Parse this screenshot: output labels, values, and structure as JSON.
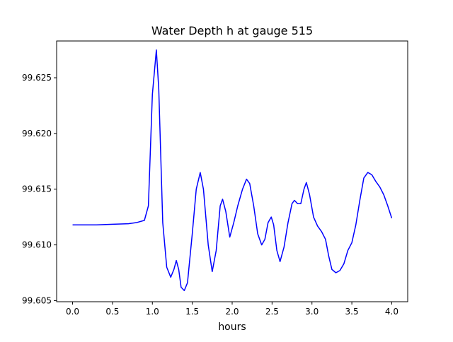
{
  "chart_data": {
    "type": "line",
    "title": "Water Depth h at gauge 515",
    "xlabel": "hours",
    "ylabel": "",
    "xlim": [
      -0.2,
      4.2
    ],
    "ylim": [
      99.6049,
      99.6283
    ],
    "xticks": [
      0.0,
      0.5,
      1.0,
      1.5,
      2.0,
      2.5,
      3.0,
      3.5,
      4.0
    ],
    "xtick_labels": [
      "0.0",
      "0.5",
      "1.0",
      "1.5",
      "2.0",
      "2.5",
      "3.0",
      "3.5",
      "4.0"
    ],
    "yticks": [
      99.605,
      99.61,
      99.615,
      99.62,
      99.625
    ],
    "ytick_labels": [
      "99.605",
      "99.610",
      "99.615",
      "99.620",
      "99.625"
    ],
    "grid": false,
    "series": [
      {
        "color": "#0000ff",
        "points": [
          [
            0.0,
            99.6118
          ],
          [
            0.3,
            99.6118
          ],
          [
            0.5,
            99.61185
          ],
          [
            0.7,
            99.6119
          ],
          [
            0.8,
            99.612
          ],
          [
            0.9,
            99.6122
          ],
          [
            0.95,
            99.6135
          ],
          [
            1.0,
            99.6235
          ],
          [
            1.05,
            99.6275
          ],
          [
            1.08,
            99.624
          ],
          [
            1.13,
            99.612
          ],
          [
            1.18,
            99.608
          ],
          [
            1.23,
            99.6071
          ],
          [
            1.27,
            99.6078
          ],
          [
            1.3,
            99.6086
          ],
          [
            1.33,
            99.6078
          ],
          [
            1.36,
            99.6062
          ],
          [
            1.4,
            99.6059
          ],
          [
            1.44,
            99.6066
          ],
          [
            1.5,
            99.611
          ],
          [
            1.55,
            99.615
          ],
          [
            1.6,
            99.6165
          ],
          [
            1.64,
            99.615
          ],
          [
            1.7,
            99.61
          ],
          [
            1.75,
            99.6076
          ],
          [
            1.8,
            99.6095
          ],
          [
            1.85,
            99.6135
          ],
          [
            1.88,
            99.6141
          ],
          [
            1.92,
            99.613
          ],
          [
            1.97,
            99.6107
          ],
          [
            2.02,
            99.612
          ],
          [
            2.07,
            99.6135
          ],
          [
            2.13,
            99.615
          ],
          [
            2.18,
            99.6159
          ],
          [
            2.22,
            99.6155
          ],
          [
            2.27,
            99.6135
          ],
          [
            2.32,
            99.611
          ],
          [
            2.37,
            99.61
          ],
          [
            2.41,
            99.6105
          ],
          [
            2.45,
            99.612
          ],
          [
            2.49,
            99.6125
          ],
          [
            2.52,
            99.6118
          ],
          [
            2.56,
            99.6095
          ],
          [
            2.6,
            99.6085
          ],
          [
            2.65,
            99.6098
          ],
          [
            2.7,
            99.612
          ],
          [
            2.75,
            99.6137
          ],
          [
            2.78,
            99.614
          ],
          [
            2.82,
            99.6137
          ],
          [
            2.86,
            99.6137
          ],
          [
            2.9,
            99.615
          ],
          [
            2.93,
            99.6156
          ],
          [
            2.97,
            99.6145
          ],
          [
            3.02,
            99.6125
          ],
          [
            3.07,
            99.6117
          ],
          [
            3.12,
            99.6112
          ],
          [
            3.17,
            99.6105
          ],
          [
            3.21,
            99.609
          ],
          [
            3.25,
            99.6078
          ],
          [
            3.3,
            99.6075
          ],
          [
            3.35,
            99.6077
          ],
          [
            3.4,
            99.6083
          ],
          [
            3.45,
            99.6095
          ],
          [
            3.5,
            99.6102
          ],
          [
            3.55,
            99.6118
          ],
          [
            3.6,
            99.614
          ],
          [
            3.65,
            99.616
          ],
          [
            3.7,
            99.6165
          ],
          [
            3.75,
            99.6163
          ],
          [
            3.8,
            99.6157
          ],
          [
            3.85,
            99.6152
          ],
          [
            3.9,
            99.6145
          ],
          [
            3.95,
            99.6135
          ],
          [
            4.0,
            99.6124
          ]
        ]
      }
    ]
  }
}
